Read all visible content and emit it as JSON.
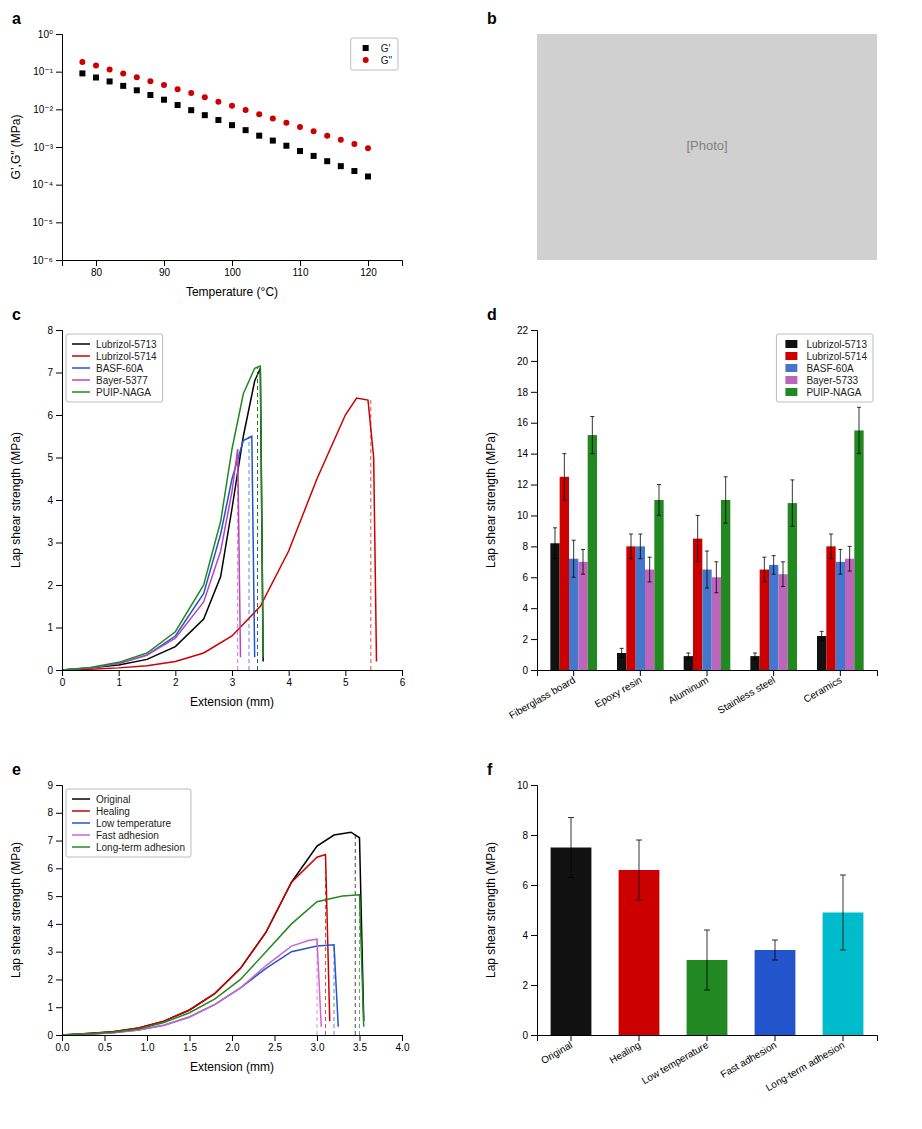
{
  "chart_data": [
    {
      "type": "scatter",
      "title": "a",
      "xlabel": "Temperature (°C)",
      "ylabel": "G’,G″ (MPa)",
      "log": "y",
      "xlim": [
        75,
        125
      ],
      "ylim": [
        1e-06,
        1
      ],
      "xticks": [
        80,
        90,
        100,
        110,
        120
      ],
      "yticks": [
        {
          "value": 1e-06,
          "label": "10⁻⁶"
        },
        {
          "value": 1e-05,
          "label": "10⁻⁵"
        },
        {
          "value": 0.0001,
          "label": "10⁻⁴"
        },
        {
          "value": 0.001,
          "label": "10⁻³"
        },
        {
          "value": 0.01,
          "label": "10⁻²"
        },
        {
          "value": 0.1,
          "label": "10⁻¹"
        },
        {
          "value": 1,
          "label": "10⁰"
        }
      ],
      "grid": false,
      "legend": "upper right",
      "x": [
        78,
        80,
        82,
        84,
        86,
        88,
        90,
        92,
        94,
        96,
        98,
        100,
        102,
        104,
        106,
        108,
        110,
        112,
        114,
        116,
        118,
        120
      ],
      "series": [
        {
          "name": "G'",
          "color": "#000000",
          "marker": "square",
          "values": [
            0.09,
            0.07,
            0.055,
            0.042,
            0.032,
            0.024,
            0.018,
            0.013,
            0.0095,
            0.007,
            0.0052,
            0.0038,
            0.0028,
            0.002,
            0.00148,
            0.00108,
            0.00078,
            0.00058,
            0.00042,
            0.00031,
            0.00023,
            0.000165
          ]
        },
        {
          "name": "G\"",
          "color": "#cc0000",
          "marker": "circle",
          "values": [
            0.18,
            0.145,
            0.115,
            0.09,
            0.071,
            0.056,
            0.044,
            0.034,
            0.027,
            0.021,
            0.016,
            0.0125,
            0.0096,
            0.0074,
            0.0057,
            0.0044,
            0.0034,
            0.0026,
            0.002,
            0.00155,
            0.0012,
            0.00093
          ]
        }
      ]
    },
    {
      "type": "image",
      "title": "b",
      "annotations": [
        "[Photo]"
      ],
      "color": "#d0d0d0"
    },
    {
      "type": "line",
      "title": "c",
      "xlabel": "Extension (mm)",
      "ylabel": "Lap shear strength (MPa)",
      "xlim": [
        0,
        6
      ],
      "ylim": [
        0,
        8
      ],
      "xticks": [
        0,
        1,
        2,
        3,
        4,
        5,
        6
      ],
      "yticks": [
        0,
        1,
        2,
        3,
        4,
        5,
        6,
        7,
        8
      ],
      "grid": false,
      "legend": "upper left",
      "series": [
        {
          "name": "Lubrizol-5713",
          "color": "#000000",
          "x": [
            0,
            0.5,
            1.0,
            1.5,
            2.0,
            2.5,
            2.8,
            3.0,
            3.2,
            3.4,
            3.5,
            3.55
          ],
          "values": [
            0,
            0.05,
            0.12,
            0.25,
            0.55,
            1.2,
            2.2,
            3.8,
            5.5,
            6.8,
            7.1,
            0.2
          ],
          "vline": 3.45,
          "peak": 7.1
        },
        {
          "name": "Lubrizol-5714",
          "color": "#cc0000",
          "x": [
            0,
            0.5,
            1.0,
            1.5,
            2.0,
            2.5,
            3.0,
            3.5,
            4.0,
            4.5,
            5.0,
            5.2,
            5.4,
            5.5,
            5.55
          ],
          "values": [
            0,
            0.02,
            0.05,
            0.1,
            0.2,
            0.4,
            0.8,
            1.5,
            2.8,
            4.5,
            6.0,
            6.4,
            6.35,
            5.0,
            0.2
          ],
          "vline": 5.45,
          "peak": 6.4
        },
        {
          "name": "BASF-60A",
          "color": "#2255cc",
          "x": [
            0,
            0.5,
            1.0,
            1.5,
            2.0,
            2.5,
            2.8,
            3.0,
            3.2,
            3.35,
            3.4
          ],
          "values": [
            0,
            0.05,
            0.15,
            0.35,
            0.8,
            1.8,
            3.2,
            4.5,
            5.4,
            5.5,
            0.3
          ],
          "vline": 3.3,
          "peak": 5.5
        },
        {
          "name": "Bayer-5377",
          "color": "#bb44bb",
          "x": [
            0,
            0.5,
            1.0,
            1.5,
            2.0,
            2.5,
            2.8,
            3.0,
            3.1,
            3.15
          ],
          "values": [
            0,
            0.05,
            0.15,
            0.35,
            0.75,
            1.6,
            2.8,
            4.2,
            5.2,
            0.3
          ],
          "vline": 3.1,
          "peak": 5.2
        },
        {
          "name": "PUIP-NAGA",
          "color": "#228822",
          "x": [
            0,
            0.5,
            1.0,
            1.5,
            2.0,
            2.5,
            2.8,
            3.0,
            3.2,
            3.4,
            3.5,
            3.55
          ],
          "values": [
            0,
            0.06,
            0.18,
            0.4,
            0.9,
            2.0,
            3.5,
            5.2,
            6.5,
            7.1,
            7.15,
            0.3
          ],
          "vline": 3.45,
          "peak": 7.15
        }
      ]
    },
    {
      "type": "bar",
      "title": "d",
      "ylabel": "Lap shear strength (MPa)",
      "ylim": [
        0,
        22
      ],
      "yticks": [
        0,
        2,
        4,
        6,
        8,
        10,
        12,
        14,
        16,
        18,
        20,
        22
      ],
      "grid": false,
      "legend": "upper right",
      "categories": [
        "Fiberglass board",
        "Epoxy resin",
        "Aluminum",
        "Stainless steel",
        "Ceramics"
      ],
      "series": [
        {
          "name": "Lubrizol-5713",
          "color": "#111111",
          "values": [
            8.2,
            1.1,
            0.9,
            0.9,
            2.2
          ],
          "errors": [
            1.0,
            0.3,
            0.2,
            0.2,
            0.3
          ]
        },
        {
          "name": "Lubrizol-5714",
          "color": "#cc0000",
          "values": [
            12.5,
            8.0,
            8.5,
            6.5,
            8.0
          ],
          "errors": [
            1.5,
            0.8,
            1.5,
            0.8,
            0.8
          ]
        },
        {
          "name": "BASF-60A",
          "color": "#4477cc",
          "values": [
            7.2,
            8.0,
            6.5,
            6.8,
            7.0
          ],
          "errors": [
            1.2,
            0.8,
            1.2,
            0.6,
            0.8
          ]
        },
        {
          "name": "Bayer-5733",
          "color": "#bb66bb",
          "values": [
            7.0,
            6.5,
            6.0,
            6.2,
            7.2
          ],
          "errors": [
            0.8,
            0.8,
            1.0,
            0.8,
            0.8
          ]
        },
        {
          "name": "PUIP-NAGA",
          "color": "#228822",
          "values": [
            15.2,
            11.0,
            11.0,
            10.8,
            15.5
          ],
          "errors": [
            1.2,
            1.0,
            1.5,
            1.5,
            1.5
          ]
        }
      ]
    },
    {
      "type": "line",
      "title": "e",
      "xlabel": "Extension (mm)",
      "ylabel": "Lap shear strength (MPa)",
      "xlim": [
        0,
        4.0
      ],
      "ylim": [
        0,
        9
      ],
      "xticks": [
        {
          "value": 0,
          "label": "0.0"
        },
        0.5,
        {
          "value": 1,
          "label": "1.0"
        },
        1.5,
        {
          "value": 2,
          "label": "2.0"
        },
        2.5,
        {
          "value": 3,
          "label": "3.0"
        },
        3.5,
        {
          "value": 4,
          "label": "4.0"
        }
      ],
      "yticks": [
        0,
        1,
        2,
        3,
        4,
        5,
        6,
        7,
        8,
        9
      ],
      "grid": false,
      "legend": "upper left",
      "series": [
        {
          "name": "Original",
          "color": "#000000",
          "x": [
            0,
            0.3,
            0.6,
            0.9,
            1.2,
            1.5,
            1.8,
            2.1,
            2.4,
            2.7,
            3.0,
            3.2,
            3.4,
            3.5,
            3.55
          ],
          "values": [
            0,
            0.05,
            0.12,
            0.25,
            0.5,
            0.9,
            1.5,
            2.4,
            3.7,
            5.5,
            6.8,
            7.2,
            7.3,
            7.1,
            0.5
          ],
          "vline": 3.45,
          "peak": 7.3
        },
        {
          "name": "Healing",
          "color": "#cc0000",
          "x": [
            0,
            0.3,
            0.6,
            0.9,
            1.2,
            1.5,
            1.8,
            2.1,
            2.4,
            2.7,
            3.0,
            3.1,
            3.15
          ],
          "values": [
            0,
            0.05,
            0.12,
            0.25,
            0.5,
            0.9,
            1.5,
            2.4,
            3.7,
            5.5,
            6.4,
            6.5,
            0.5
          ],
          "vline": 3.1,
          "peak": 6.5
        },
        {
          "name": "Low temperature",
          "color": "#2255cc",
          "x": [
            0,
            0.3,
            0.6,
            0.9,
            1.2,
            1.5,
            1.8,
            2.1,
            2.4,
            2.7,
            3.0,
            3.2,
            3.25
          ],
          "values": [
            0,
            0.03,
            0.08,
            0.18,
            0.35,
            0.65,
            1.1,
            1.7,
            2.4,
            3.0,
            3.2,
            3.25,
            0.3
          ],
          "vline": 3.2,
          "peak": 3.25
        },
        {
          "name": "Fast adhesion",
          "color": "#cc66cc",
          "x": [
            0,
            0.3,
            0.6,
            0.9,
            1.2,
            1.5,
            1.8,
            2.1,
            2.4,
            2.7,
            2.9,
            3.0,
            3.05
          ],
          "values": [
            0,
            0.03,
            0.08,
            0.18,
            0.35,
            0.65,
            1.1,
            1.7,
            2.5,
            3.2,
            3.4,
            3.45,
            0.3
          ],
          "vline": 3.0,
          "peak": 3.45
        },
        {
          "name": "Long-term adhesion",
          "color": "#228822",
          "x": [
            0,
            0.3,
            0.6,
            0.9,
            1.2,
            1.5,
            1.8,
            2.1,
            2.4,
            2.7,
            3.0,
            3.3,
            3.5,
            3.55
          ],
          "values": [
            0,
            0.04,
            0.1,
            0.22,
            0.45,
            0.8,
            1.3,
            2.0,
            3.0,
            4.0,
            4.8,
            5.0,
            5.05,
            0.3
          ],
          "vline": 3.5,
          "peak": 5.05
        }
      ]
    },
    {
      "type": "bar",
      "title": "f",
      "ylabel": "Lap shear strength (MPa)",
      "ylim": [
        0,
        10
      ],
      "yticks": [
        0,
        2,
        4,
        6,
        8,
        10
      ],
      "grid": false,
      "categories": [
        "Original",
        "Healing",
        "Low temperature",
        "Fast adhesion",
        "Long-term adhesion"
      ],
      "values": [
        7.5,
        6.6,
        3.0,
        3.4,
        4.9
      ],
      "errors": [
        1.2,
        1.2,
        1.2,
        0.4,
        1.5
      ],
      "colors": [
        "#111111",
        "#cc0000",
        "#228822",
        "#2255cc",
        "#00bbcc"
      ]
    }
  ]
}
